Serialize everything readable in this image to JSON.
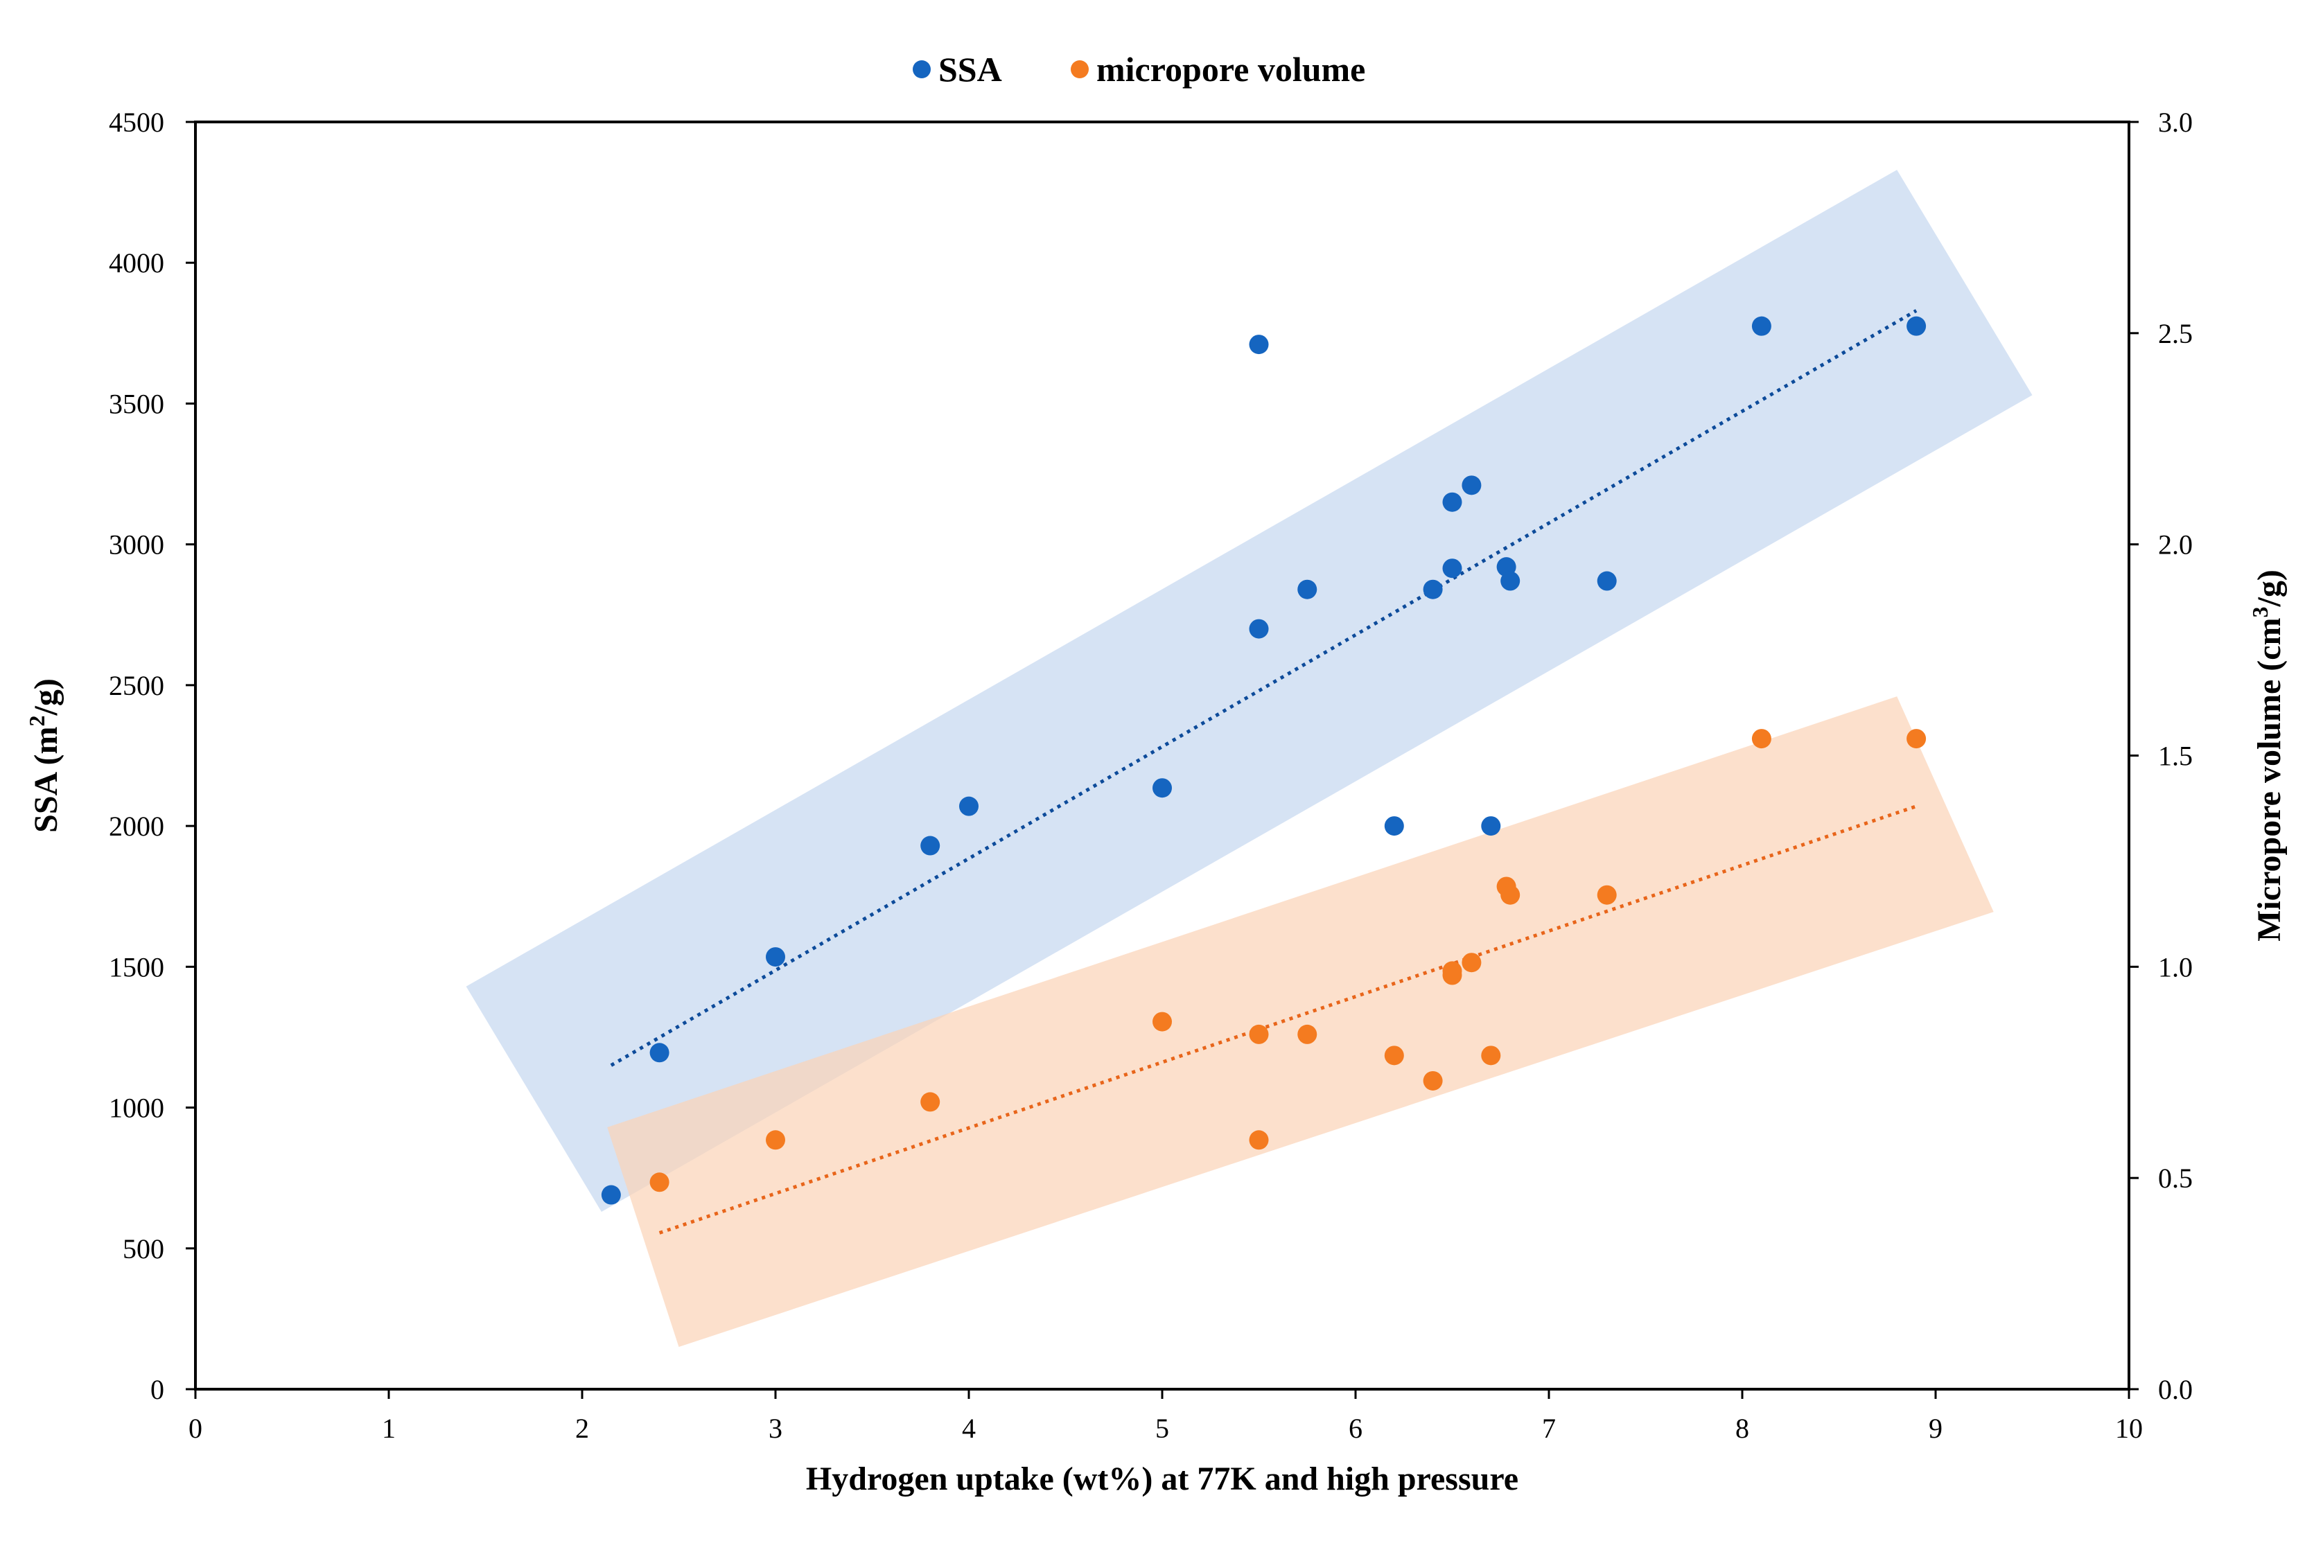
{
  "chart_data": {
    "type": "scatter",
    "legend": {
      "position": "top-center",
      "entries": [
        {
          "label": "SSA",
          "color": "#1565C0"
        },
        {
          "label": "micropore volume",
          "color": "#F47B20"
        }
      ]
    },
    "xlabel": "Hydrogen uptake (wt%) at 77K and high pressure",
    "ylabel_left": {
      "base": "SSA (m",
      "sup": "2",
      "tail": "/g)"
    },
    "ylabel_right": {
      "base": "Micropore volume (cm",
      "sup": "3",
      "tail": "/g)"
    },
    "xlim": [
      0,
      10
    ],
    "ylim_left": [
      0,
      4500
    ],
    "ylim_right": [
      0,
      3.0
    ],
    "xticks": [
      "0",
      "1",
      "2",
      "3",
      "4",
      "5",
      "6",
      "7",
      "8",
      "9",
      "10"
    ],
    "yticks_left": [
      "0",
      "500",
      "1000",
      "1500",
      "2000",
      "2500",
      "3000",
      "3500",
      "4000",
      "4500"
    ],
    "yticks_right": [
      "0.0",
      "0.5",
      "1.0",
      "1.5",
      "2.0",
      "2.5",
      "3.0"
    ],
    "grid": false,
    "series": [
      {
        "name": "SSA",
        "axis": "left",
        "color": "#1565C0",
        "points": [
          {
            "x": 2.15,
            "y": 690
          },
          {
            "x": 2.4,
            "y": 1195
          },
          {
            "x": 3.0,
            "y": 1535
          },
          {
            "x": 3.8,
            "y": 1930
          },
          {
            "x": 4.0,
            "y": 2070
          },
          {
            "x": 5.0,
            "y": 2135
          },
          {
            "x": 5.5,
            "y": 2700
          },
          {
            "x": 5.5,
            "y": 3710
          },
          {
            "x": 5.75,
            "y": 2840
          },
          {
            "x": 6.2,
            "y": 2000
          },
          {
            "x": 6.4,
            "y": 2840
          },
          {
            "x": 6.5,
            "y": 2915
          },
          {
            "x": 6.5,
            "y": 3150
          },
          {
            "x": 6.6,
            "y": 3210
          },
          {
            "x": 6.7,
            "y": 2000
          },
          {
            "x": 6.78,
            "y": 2920
          },
          {
            "x": 6.8,
            "y": 2870
          },
          {
            "x": 7.3,
            "y": 2870
          },
          {
            "x": 8.1,
            "y": 3775
          },
          {
            "x": 8.9,
            "y": 3775
          }
        ],
        "trendline": {
          "x": [
            2.15,
            8.9
          ],
          "y": [
            1150,
            3830
          ]
        },
        "band": [
          [
            1.4,
            1430
          ],
          [
            8.8,
            4330
          ],
          [
            9.5,
            3530
          ],
          [
            2.1,
            630
          ]
        ]
      },
      {
        "name": "micropore volume",
        "axis": "right",
        "color": "#F47B20",
        "points": [
          {
            "x": 2.4,
            "y": 0.49
          },
          {
            "x": 3.0,
            "y": 0.59
          },
          {
            "x": 3.8,
            "y": 0.68
          },
          {
            "x": 5.0,
            "y": 0.87
          },
          {
            "x": 5.5,
            "y": 0.84
          },
          {
            "x": 5.5,
            "y": 0.59
          },
          {
            "x": 5.75,
            "y": 0.84
          },
          {
            "x": 6.2,
            "y": 0.79
          },
          {
            "x": 6.4,
            "y": 0.73
          },
          {
            "x": 6.5,
            "y": 0.98
          },
          {
            "x": 6.5,
            "y": 0.99
          },
          {
            "x": 6.6,
            "y": 1.01
          },
          {
            "x": 6.7,
            "y": 0.79
          },
          {
            "x": 6.78,
            "y": 1.19
          },
          {
            "x": 6.8,
            "y": 1.17
          },
          {
            "x": 7.3,
            "y": 1.17
          },
          {
            "x": 8.1,
            "y": 1.54
          },
          {
            "x": 8.9,
            "y": 1.54
          }
        ],
        "trendline": {
          "x": [
            2.4,
            8.9
          ],
          "y": [
            0.37,
            1.38
          ]
        },
        "band": [
          [
            2.13,
            0.62
          ],
          [
            8.8,
            1.64
          ],
          [
            9.3,
            1.13
          ],
          [
            2.5,
            0.1
          ]
        ]
      }
    ]
  }
}
